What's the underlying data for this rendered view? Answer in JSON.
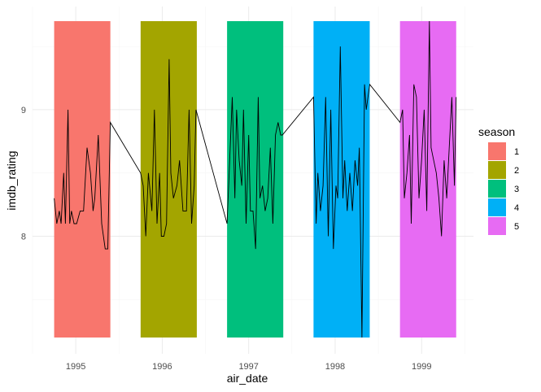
{
  "chart_data": {
    "type": "bar+line",
    "xlabel": "air_date",
    "ylabel": "imdb_rating",
    "x_ticks": [
      "1995",
      "1996",
      "1997",
      "1998",
      "1999"
    ],
    "y_ticks": [
      "8",
      "9"
    ],
    "ylim": [
      7.2,
      9.7
    ],
    "grid": "on",
    "legend": {
      "title": "season",
      "position": "right",
      "entries": [
        "1",
        "2",
        "3",
        "4",
        "5"
      ]
    },
    "colors": [
      "#F8766D",
      "#A3A500",
      "#00BF7D",
      "#00B0F6",
      "#E76BF3"
    ],
    "season_bars": [
      {
        "season": "1",
        "start": 1994.75,
        "end": 1995.4,
        "max_rating": 9.7
      },
      {
        "season": "2",
        "start": 1995.75,
        "end": 1996.4,
        "max_rating": 9.7
      },
      {
        "season": "3",
        "start": 1996.75,
        "end": 1997.4,
        "max_rating": 9.7
      },
      {
        "season": "4",
        "start": 1997.75,
        "end": 1998.4,
        "max_rating": 9.7
      },
      {
        "season": "5",
        "start": 1998.75,
        "end": 1999.4,
        "max_rating": 9.7
      }
    ],
    "rating_line": {
      "x": [
        1994.75,
        1994.78,
        1994.81,
        1994.83,
        1994.86,
        1994.88,
        1994.91,
        1994.93,
        1994.95,
        1994.98,
        1995.01,
        1995.05,
        1995.09,
        1995.13,
        1995.17,
        1995.2,
        1995.22,
        1995.26,
        1995.3,
        1995.34,
        1995.37,
        1995.4,
        1995.75,
        1995.78,
        1995.81,
        1995.84,
        1995.88,
        1995.91,
        1995.94,
        1995.97,
        1995.99,
        1996.02,
        1996.05,
        1996.08,
        1996.1,
        1996.13,
        1996.17,
        1996.2,
        1996.24,
        1996.28,
        1996.31,
        1996.34,
        1996.37,
        1996.39,
        1996.75,
        1996.78,
        1996.81,
        1996.84,
        1996.86,
        1996.89,
        1996.92,
        1996.94,
        1996.97,
        1997.0,
        1997.02,
        1997.05,
        1997.08,
        1997.11,
        1997.13,
        1997.16,
        1997.19,
        1997.22,
        1997.25,
        1997.28,
        1997.31,
        1997.34,
        1997.37,
        1997.39,
        1997.75,
        1997.78,
        1997.8,
        1997.83,
        1997.86,
        1997.89,
        1997.92,
        1997.95,
        1997.98,
        1998.01,
        1998.03,
        1998.06,
        1998.09,
        1998.11,
        1998.14,
        1998.17,
        1998.2,
        1998.23,
        1998.26,
        1998.28,
        1998.31,
        1998.34,
        1998.36,
        1998.38,
        1998.4,
        1998.75,
        1998.78,
        1998.8,
        1998.83,
        1998.86,
        1998.88,
        1998.91,
        1998.94,
        1998.97,
        1999.0,
        1999.03,
        1999.06,
        1999.09,
        1999.11,
        1999.14,
        1999.17,
        1999.2,
        1999.23,
        1999.26,
        1999.29,
        1999.32,
        1999.35,
        1999.38,
        1999.4
      ],
      "y": [
        8.3,
        8.1,
        8.2,
        8.1,
        8.5,
        8.1,
        9.0,
        8.1,
        8.2,
        8.1,
        8.1,
        8.2,
        8.2,
        8.7,
        8.5,
        8.2,
        8.3,
        8.8,
        8.1,
        7.9,
        7.9,
        8.9,
        8.5,
        8.4,
        8.0,
        8.5,
        8.2,
        9.0,
        8.1,
        8.5,
        8.0,
        8.0,
        8.1,
        9.4,
        8.5,
        8.3,
        8.4,
        8.6,
        8.2,
        8.2,
        9.0,
        8.1,
        8.4,
        9.0,
        8.1,
        8.6,
        9.1,
        8.3,
        9.0,
        8.6,
        8.4,
        9.0,
        8.1,
        8.8,
        8.2,
        8.2,
        7.9,
        9.1,
        8.3,
        8.4,
        8.2,
        8.3,
        8.7,
        8.1,
        8.8,
        8.9,
        8.8,
        8.8,
        9.1,
        8.1,
        8.5,
        8.2,
        8.4,
        9.1,
        8.0,
        9.0,
        7.9,
        8.4,
        8.3,
        9.5,
        8.3,
        8.6,
        8.2,
        8.5,
        8.2,
        8.6,
        8.4,
        8.7,
        7.2,
        9.2,
        9.0,
        9.1,
        9.2,
        8.9,
        9.0,
        8.3,
        8.5,
        8.8,
        8.1,
        9.2,
        9.1,
        8.3,
        8.6,
        9.0,
        8.2,
        9.7,
        8.7,
        8.6,
        8.5,
        8.3,
        8.0,
        8.6,
        8.3,
        8.7,
        9.1,
        8.4,
        9.1
      ]
    }
  }
}
